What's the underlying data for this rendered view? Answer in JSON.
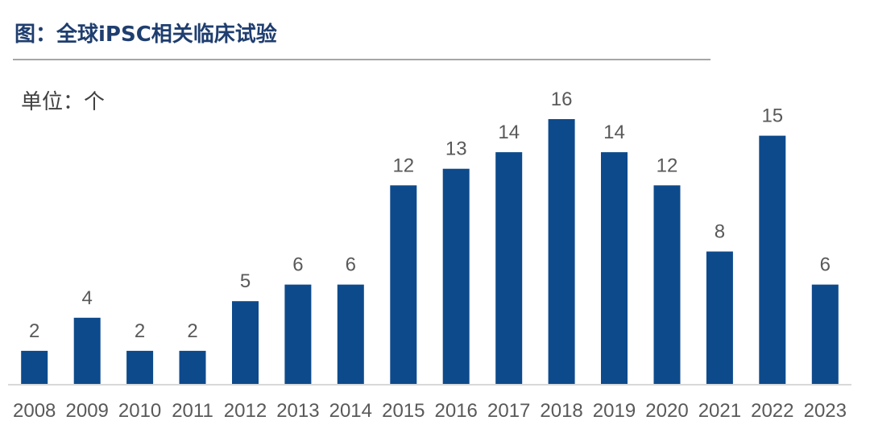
{
  "header": {
    "title": "图：全球iPSC相关临床试验",
    "unit_label": "单位：个"
  },
  "colors": {
    "bar": "#0d4a8c",
    "title": "#1f3e6f",
    "axis": "#d9d9d9"
  },
  "chart_data": {
    "type": "bar",
    "title": "图：全球iPSC相关临床试验",
    "xlabel": "",
    "ylabel": "单位：个",
    "categories": [
      "2008",
      "2009",
      "2010",
      "2011",
      "2012",
      "2013",
      "2014",
      "2015",
      "2016",
      "2017",
      "2018",
      "2019",
      "2020",
      "2021",
      "2022",
      "2023"
    ],
    "values": [
      2,
      4,
      2,
      2,
      5,
      6,
      6,
      12,
      13,
      14,
      16,
      14,
      12,
      8,
      15,
      6
    ],
    "ylim": [
      0,
      16
    ],
    "grid": false,
    "legend": "none",
    "data_labels": true
  }
}
